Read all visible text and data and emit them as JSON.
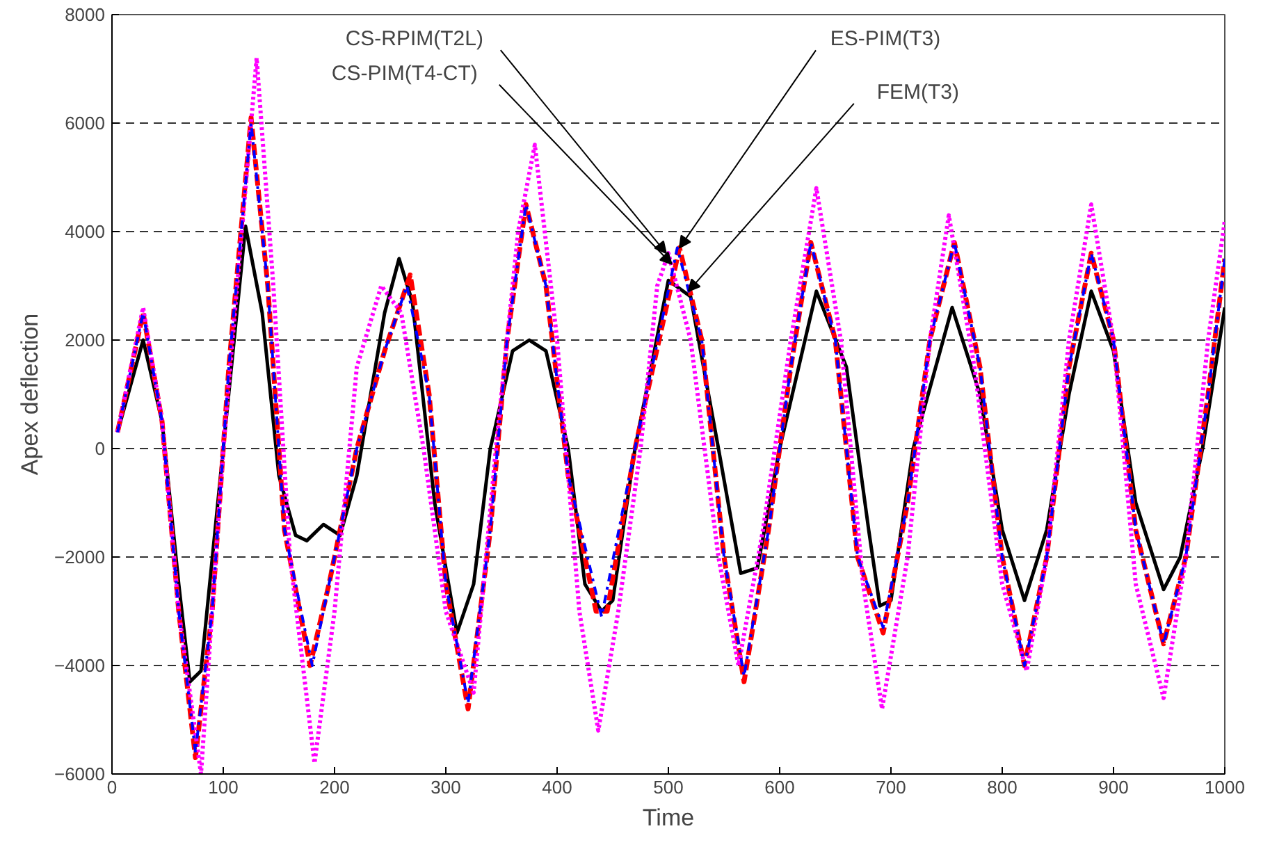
{
  "chart_data": {
    "type": "line",
    "xlabel": "Time",
    "ylabel": "Apex deflection",
    "xlim": [
      0,
      1000
    ],
    "ylim": [
      -6000,
      8000
    ],
    "xticks": [
      0,
      100,
      200,
      300,
      400,
      500,
      600,
      700,
      800,
      900,
      1000
    ],
    "yticks": [
      -6000,
      -4000,
      -2000,
      0,
      2000,
      4000,
      6000,
      8000
    ],
    "grid": "y",
    "series": [
      {
        "color": "#000000",
        "line_style": "solid",
        "x": [
          5,
          28,
          45,
          60,
          70,
          80,
          100,
          120,
          135,
          150,
          165,
          175,
          190,
          205,
          220,
          245,
          258,
          270,
          290,
          310,
          325,
          340,
          360,
          375,
          390,
          410,
          425,
          440,
          450,
          470,
          500,
          520,
          545,
          565,
          580,
          600,
          633,
          660,
          680,
          690,
          700,
          720,
          755,
          780,
          800,
          820,
          840,
          860,
          880,
          900,
          920,
          945,
          960,
          980,
          1000
        ],
        "values": [
          300,
          2000,
          500,
          -2500,
          -4300,
          -4100,
          0,
          4100,
          2500,
          -500,
          -1600,
          -1700,
          -1400,
          -1600,
          -500,
          2500,
          3500,
          2700,
          -1000,
          -3400,
          -2500,
          0,
          1800,
          2000,
          1800,
          0,
          -2500,
          -3000,
          -2800,
          0,
          3100,
          2800,
          0,
          -2300,
          -2200,
          0,
          2900,
          1500,
          -1500,
          -2900,
          -2800,
          0,
          2600,
          1000,
          -1500,
          -2800,
          -1500,
          1000,
          2900,
          1800,
          -1000,
          -2600,
          -2000,
          0,
          2600
        ]
      },
      {
        "color": "#0000ff",
        "line_style": "dashed",
        "x": [
          5,
          28,
          45,
          60,
          75,
          90,
          105,
          125,
          140,
          155,
          180,
          195,
          220,
          245,
          265,
          285,
          300,
          320,
          340,
          355,
          372,
          390,
          410,
          440,
          470,
          508,
          530,
          550,
          568,
          590,
          610,
          628,
          650,
          670,
          693,
          715,
          735,
          757,
          780,
          800,
          820,
          840,
          860,
          880,
          900,
          920,
          945,
          965,
          985,
          1000
        ],
        "values": [
          300,
          2500,
          500,
          -3000,
          -5600,
          -3000,
          1500,
          6000,
          3000,
          -1500,
          -4000,
          -2500,
          0,
          1800,
          3000,
          1000,
          -2500,
          -4700,
          -1500,
          2000,
          4500,
          3000,
          -500,
          -3100,
          0,
          3700,
          2000,
          -2000,
          -4200,
          -1500,
          1500,
          3800,
          2000,
          -2000,
          -3300,
          -1000,
          2000,
          3800,
          1500,
          -2000,
          -4000,
          -2000,
          1500,
          3600,
          2000,
          -1500,
          -3600,
          -2000,
          1000,
          3500
        ]
      },
      {
        "color": "#ff0000",
        "line_style": "dashed",
        "x": [
          5,
          28,
          45,
          60,
          75,
          90,
          105,
          125,
          140,
          155,
          178,
          195,
          220,
          245,
          268,
          285,
          300,
          320,
          340,
          355,
          372,
          390,
          410,
          435,
          445,
          470,
          510,
          530,
          550,
          568,
          590,
          610,
          628,
          650,
          670,
          693,
          715,
          735,
          757,
          780,
          800,
          820,
          840,
          860,
          880,
          900,
          920,
          945,
          965,
          985,
          1000
        ],
        "values": [
          300,
          2500,
          500,
          -3000,
          -5700,
          -3000,
          1500,
          6100,
          3000,
          -1500,
          -4000,
          -2500,
          0,
          1800,
          3200,
          1000,
          -2500,
          -4800,
          -1500,
          2000,
          4500,
          3000,
          -500,
          -3000,
          -3000,
          0,
          3700,
          2000,
          -2000,
          -4300,
          -1500,
          1500,
          3800,
          2000,
          -2000,
          -3400,
          -1000,
          2000,
          3800,
          1500,
          -2000,
          -4000,
          -2000,
          1500,
          3600,
          2000,
          -1500,
          -3600,
          -2000,
          1000,
          3500
        ]
      },
      {
        "color": "#ff00ff",
        "line_style": "dotted",
        "x": [
          5,
          28,
          45,
          60,
          80,
          100,
          130,
          145,
          160,
          182,
          200,
          220,
          242,
          260,
          280,
          300,
          325,
          345,
          365,
          380,
          400,
          420,
          437,
          455,
          475,
          490,
          500,
          520,
          545,
          563,
          585,
          610,
          633,
          655,
          675,
          692,
          715,
          735,
          752,
          775,
          800,
          822,
          840,
          860,
          880,
          900,
          920,
          945,
          965,
          985,
          1000
        ],
        "values": [
          300,
          2600,
          500,
          -3000,
          -6000,
          0,
          7200,
          3000,
          -2000,
          -5800,
          -3000,
          1500,
          3000,
          2500,
          0,
          -3000,
          -4500,
          0,
          4000,
          5600,
          2000,
          -3000,
          -5200,
          -3000,
          0,
          3000,
          3600,
          2000,
          -2000,
          -4000,
          -1500,
          2000,
          4800,
          2000,
          -2500,
          -4800,
          -2000,
          2000,
          4300,
          1500,
          -2500,
          -4100,
          -2000,
          2000,
          4500,
          2000,
          -2500,
          -4600,
          -2000,
          2000,
          4200
        ]
      }
    ],
    "annotations": [
      {
        "text": "CS-RPIM(T2L)",
        "x": 498,
        "y": 3600
      },
      {
        "text": "CS-PIM(T4-CT)",
        "x": 503,
        "y": 3400
      },
      {
        "text": "ES-PIM(T3)",
        "x": 510,
        "y": 3700
      },
      {
        "text": "FEM(T3)",
        "x": 518,
        "y": 2900
      }
    ]
  }
}
